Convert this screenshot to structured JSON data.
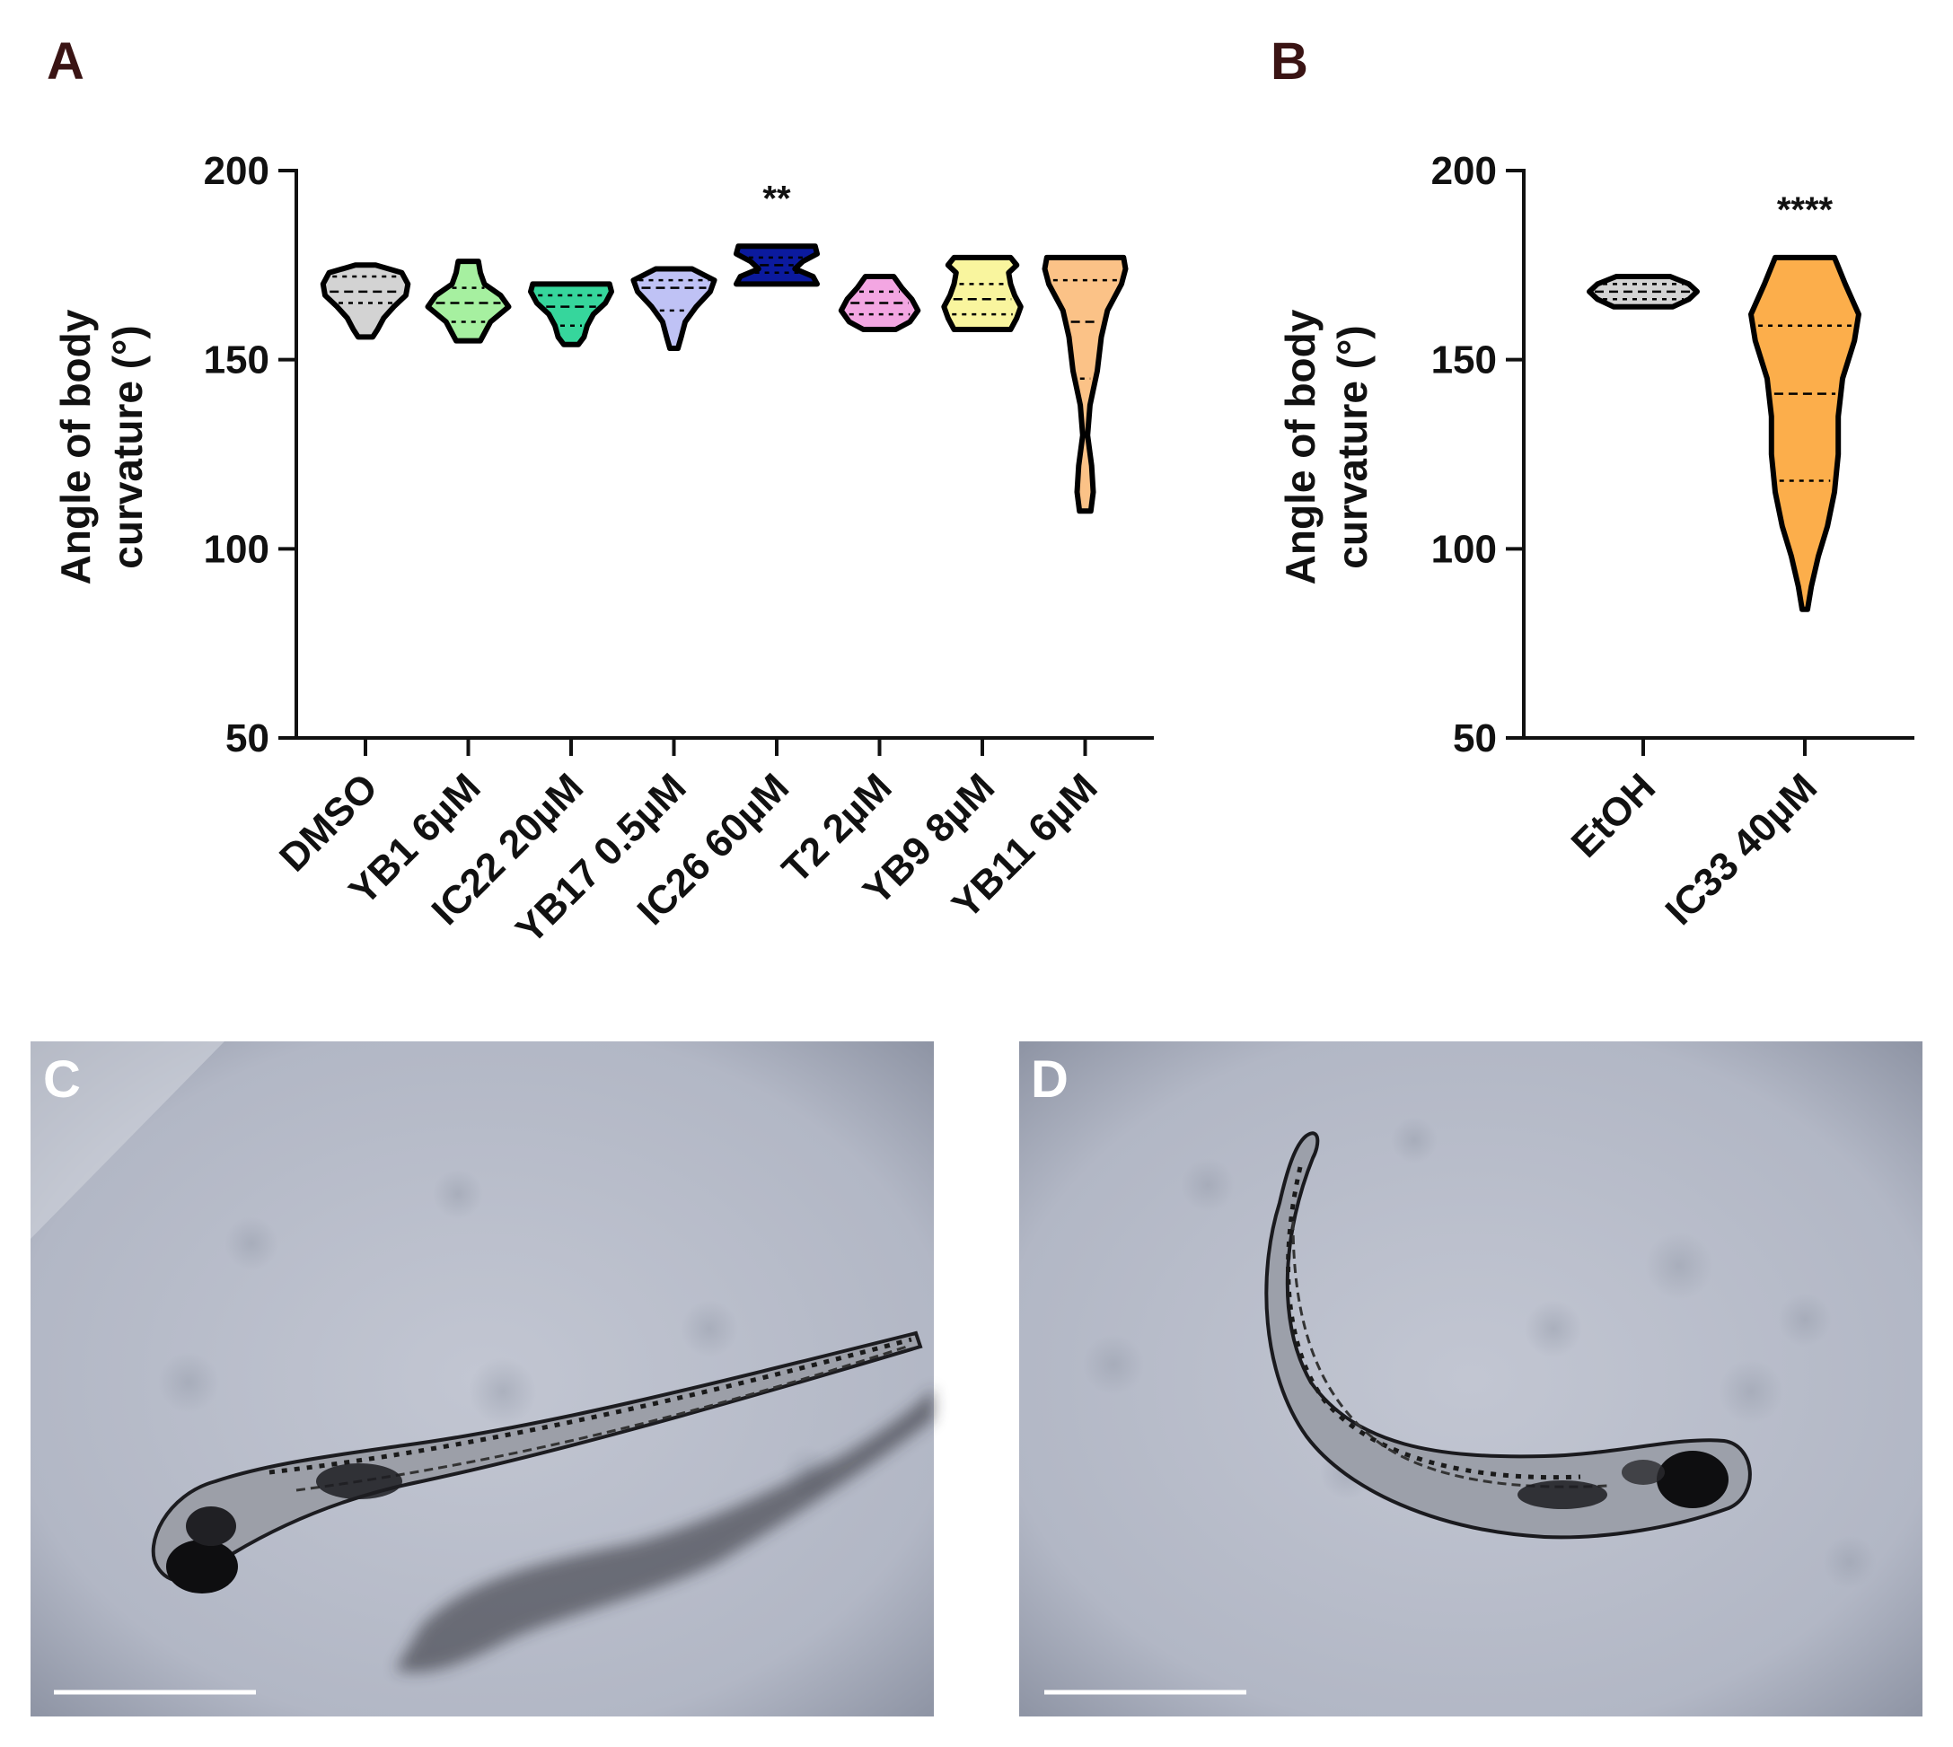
{
  "panels": {
    "A": "A",
    "B": "B",
    "C": "C",
    "D": "D"
  },
  "colors": {
    "ink": "#111111",
    "panel_letter": "#3a1414",
    "photo_bg": "#b3b8c6"
  },
  "chart_data": [
    {
      "type": "violin",
      "panel": "A",
      "ylabel": "Angle of body curvature (°)",
      "ylabel_lines": [
        "Angle of body",
        "curvature (°)"
      ],
      "ylim": [
        50,
        200
      ],
      "yticks": [
        50,
        100,
        150,
        200
      ],
      "grid": false,
      "categories": [
        "DMSO",
        "YB1 6µM",
        "IC22 20µM",
        "YB17 0.5µM",
        "IC26 60µM",
        "T2 2µM",
        "YB9 8µM",
        "YB11 6µM"
      ],
      "series": [
        {
          "category": "DMSO",
          "color": "#d3d3d3",
          "min": 156,
          "max": 175,
          "q1": 165,
          "median": 168,
          "q3": 172,
          "significance": "",
          "profile": [
            [
              156,
              0.18
            ],
            [
              158,
              0.3
            ],
            [
              161,
              0.45
            ],
            [
              164,
              0.7
            ],
            [
              167,
              1.0
            ],
            [
              170,
              1.05
            ],
            [
              173,
              0.9
            ],
            [
              175,
              0.25
            ]
          ]
        },
        {
          "category": "YB1 6µM",
          "color": "#a6f0a0",
          "min": 155,
          "max": 176,
          "q1": 160,
          "median": 165,
          "q3": 169,
          "significance": "",
          "profile": [
            [
              155,
              0.3
            ],
            [
              157,
              0.4
            ],
            [
              160,
              0.55
            ],
            [
              164,
              1.0
            ],
            [
              167,
              0.8
            ],
            [
              170,
              0.4
            ],
            [
              173,
              0.3
            ],
            [
              176,
              0.25
            ]
          ]
        },
        {
          "category": "IC22 20µM",
          "color": "#36d69c",
          "min": 154,
          "max": 170,
          "q1": 159,
          "median": 164,
          "q3": 167,
          "significance": "",
          "profile": [
            [
              154,
              0.18
            ],
            [
              156,
              0.32
            ],
            [
              159,
              0.4
            ],
            [
              162,
              0.55
            ],
            [
              165,
              0.85
            ],
            [
              168,
              1.0
            ],
            [
              170,
              0.95
            ]
          ]
        },
        {
          "category": "YB17 0.5µM",
          "color": "#bfc2f5",
          "min": 153,
          "max": 174,
          "q1": 163,
          "median": 169,
          "q3": 171,
          "significance": "",
          "profile": [
            [
              153,
              0.1
            ],
            [
              156,
              0.18
            ],
            [
              160,
              0.28
            ],
            [
              164,
              0.55
            ],
            [
              168,
              0.9
            ],
            [
              171,
              1.0
            ],
            [
              174,
              0.45
            ]
          ]
        },
        {
          "category": "IC26 60µM",
          "color": "#0b1a9e",
          "min": 170,
          "max": 180,
          "q1": 173,
          "median": 175,
          "q3": 177,
          "significance": "**",
          "profile": [
            [
              170,
              1.0
            ],
            [
              172,
              0.9
            ],
            [
              174,
              0.45
            ],
            [
              176,
              0.65
            ],
            [
              178,
              1.0
            ],
            [
              180,
              0.95
            ]
          ]
        },
        {
          "category": "T2 2µM",
          "color": "#f3a6e2",
          "min": 158,
          "max": 172,
          "q1": 162,
          "median": 165,
          "q3": 168,
          "significance": "",
          "profile": [
            [
              158,
              0.4
            ],
            [
              160,
              0.75
            ],
            [
              163,
              0.95
            ],
            [
              166,
              0.8
            ],
            [
              169,
              0.55
            ],
            [
              172,
              0.35
            ]
          ]
        },
        {
          "category": "YB9 8µM",
          "color": "#f9f59e",
          "min": 158,
          "max": 177,
          "q1": 162,
          "median": 166,
          "q3": 170,
          "significance": "",
          "profile": [
            [
              158,
              0.7
            ],
            [
              161,
              0.85
            ],
            [
              164,
              0.95
            ],
            [
              167,
              0.8
            ],
            [
              170,
              0.7
            ],
            [
              173,
              0.65
            ],
            [
              175,
              0.85
            ],
            [
              177,
              0.7
            ]
          ]
        },
        {
          "category": "YB11 6µM",
          "color": "#fbc287",
          "min": 110,
          "max": 177,
          "q1": 145,
          "median": 160,
          "q3": 171,
          "significance": "",
          "profile": [
            [
              110,
              0.14
            ],
            [
              115,
              0.2
            ],
            [
              122,
              0.16
            ],
            [
              130,
              0.06
            ],
            [
              138,
              0.12
            ],
            [
              147,
              0.3
            ],
            [
              156,
              0.4
            ],
            [
              163,
              0.55
            ],
            [
              170,
              0.9
            ],
            [
              174,
              1.0
            ],
            [
              177,
              0.95
            ]
          ]
        }
      ]
    },
    {
      "type": "violin",
      "panel": "B",
      "ylabel": "Angle of body curvature (°)",
      "ylabel_lines": [
        "Angle of body",
        "curvature (°)"
      ],
      "ylim": [
        50,
        200
      ],
      "yticks": [
        50,
        100,
        150,
        200
      ],
      "grid": false,
      "categories": [
        "EtOH",
        "IC33 40µM"
      ],
      "series": [
        {
          "category": "EtOH",
          "color": "#d3d3d3",
          "min": 164,
          "max": 172,
          "q1": 166,
          "median": 168,
          "q3": 170,
          "significance": "",
          "profile": [
            [
              164,
              0.55
            ],
            [
              166,
              0.85
            ],
            [
              168,
              1.0
            ],
            [
              170,
              0.85
            ],
            [
              172,
              0.5
            ]
          ]
        },
        {
          "category": "IC33 40µM",
          "color": "#fcae4b",
          "min": 84,
          "max": 177,
          "q1": 118,
          "median": 141,
          "q3": 159,
          "significance": "****",
          "profile": [
            [
              84,
              0.05
            ],
            [
              90,
              0.12
            ],
            [
              98,
              0.25
            ],
            [
              106,
              0.42
            ],
            [
              115,
              0.55
            ],
            [
              125,
              0.62
            ],
            [
              135,
              0.62
            ],
            [
              145,
              0.7
            ],
            [
              155,
              0.92
            ],
            [
              162,
              1.0
            ],
            [
              170,
              0.75
            ],
            [
              177,
              0.55
            ]
          ]
        }
      ]
    }
  ],
  "images": [
    {
      "panel": "C",
      "subject": "zebrafish-larva-straight"
    },
    {
      "panel": "D",
      "subject": "zebrafish-larva-curved"
    }
  ]
}
